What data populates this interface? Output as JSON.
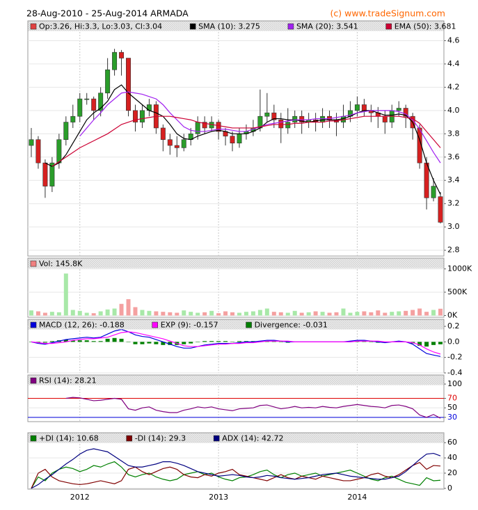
{
  "header": {
    "title": "28-Aug-2010 - 25-Aug-2014 ARMADA",
    "copyright": "(c) www.tradeSignum.com"
  },
  "chart_data": [
    {
      "type": "candlestick",
      "name": "Op:3.26, Hi:3.3, Lo:3.03, Cl:3.04",
      "color": "#e04040",
      "up_color": "#2a9d2a",
      "down_color": "#d62020",
      "categories": [
        null,
        null,
        null,
        null,
        null,
        null,
        null,
        "2012",
        null,
        null,
        null,
        null,
        null,
        null,
        null,
        null,
        null,
        null,
        null,
        null,
        null,
        null,
        null,
        null,
        null,
        null,
        null,
        "2013",
        null,
        null,
        null,
        null,
        null,
        null,
        null,
        null,
        null,
        null,
        null,
        null,
        null,
        null,
        null,
        null,
        null,
        null,
        null,
        "2014",
        null,
        null,
        null,
        null,
        null,
        null,
        null,
        null,
        null,
        null,
        null,
        null
      ],
      "open": [
        3.7,
        3.75,
        3.55,
        3.35,
        3.55,
        3.75,
        3.9,
        3.95,
        4.1,
        4.1,
        4.0,
        4.15,
        4.35,
        4.5,
        4.45,
        4.0,
        3.9,
        4.0,
        4.05,
        3.85,
        3.75,
        3.7,
        3.68,
        3.75,
        3.8,
        3.9,
        3.85,
        3.9,
        3.82,
        3.78,
        3.72,
        3.8,
        3.82,
        3.85,
        3.95,
        3.98,
        3.92,
        3.85,
        3.9,
        3.95,
        3.9,
        3.92,
        3.9,
        3.95,
        3.92,
        3.9,
        3.95,
        4.0,
        4.05,
        4.0,
        3.98,
        3.95,
        3.9,
        4.0,
        4.02,
        3.95,
        3.85,
        3.55,
        3.25,
        3.26
      ],
      "high": [
        3.85,
        3.78,
        3.58,
        3.6,
        3.8,
        3.95,
        4.05,
        4.15,
        4.15,
        4.12,
        4.2,
        4.45,
        4.53,
        4.52,
        4.45,
        4.05,
        4.05,
        4.1,
        4.08,
        3.88,
        3.8,
        3.78,
        3.8,
        3.85,
        3.95,
        3.95,
        3.95,
        3.92,
        3.85,
        3.82,
        3.85,
        3.88,
        3.92,
        4.18,
        4.15,
        4.05,
        3.98,
        4.02,
        4.0,
        4.0,
        3.98,
        3.98,
        4.02,
        4.0,
        3.98,
        4.05,
        4.08,
        4.12,
        4.1,
        4.05,
        4.03,
        4.0,
        4.05,
        4.08,
        4.05,
        3.98,
        3.88,
        3.6,
        3.42,
        3.3
      ],
      "low": [
        3.6,
        3.5,
        3.25,
        3.3,
        3.5,
        3.7,
        3.85,
        3.9,
        4.05,
        3.92,
        3.95,
        4.1,
        4.3,
        4.3,
        3.95,
        3.82,
        3.85,
        3.95,
        3.8,
        3.65,
        3.62,
        3.6,
        3.65,
        3.7,
        3.75,
        3.8,
        3.82,
        3.75,
        3.7,
        3.65,
        3.68,
        3.75,
        3.78,
        3.82,
        3.9,
        3.85,
        3.72,
        3.8,
        3.85,
        3.8,
        3.85,
        3.82,
        3.85,
        3.85,
        3.78,
        3.85,
        3.9,
        3.95,
        3.95,
        3.9,
        3.85,
        3.8,
        3.85,
        3.95,
        3.85,
        3.75,
        3.5,
        3.15,
        3.22,
        3.03
      ],
      "close": [
        3.75,
        3.55,
        3.35,
        3.55,
        3.75,
        3.9,
        3.95,
        4.1,
        4.1,
        4.0,
        4.15,
        4.35,
        4.5,
        4.45,
        4.0,
        3.9,
        4.0,
        4.05,
        3.85,
        3.75,
        3.7,
        3.68,
        3.75,
        3.8,
        3.9,
        3.85,
        3.9,
        3.82,
        3.78,
        3.72,
        3.8,
        3.82,
        3.85,
        3.95,
        3.98,
        3.92,
        3.85,
        3.9,
        3.95,
        3.9,
        3.92,
        3.9,
        3.95,
        3.92,
        3.9,
        3.95,
        4.0,
        4.05,
        4.0,
        3.98,
        3.95,
        3.9,
        4.0,
        4.02,
        3.95,
        3.85,
        3.55,
        3.25,
        3.35,
        3.04
      ],
      "series": [
        {
          "name": "SMA (10): 3.275",
          "color": "#000000",
          "values": [
            null,
            null,
            3.55,
            3.52,
            3.55,
            3.62,
            3.72,
            3.82,
            3.92,
            3.98,
            4.02,
            4.08,
            4.18,
            4.22,
            4.15,
            4.1,
            4.05,
            4.0,
            3.98,
            3.95,
            3.88,
            3.8,
            3.76,
            3.75,
            3.78,
            3.8,
            3.82,
            3.83,
            3.82,
            3.8,
            3.8,
            3.8,
            3.82,
            3.85,
            3.9,
            3.93,
            3.93,
            3.92,
            3.92,
            3.91,
            3.9,
            3.91,
            3.92,
            3.92,
            3.92,
            3.93,
            3.95,
            3.98,
            4.0,
            4.0,
            3.98,
            3.96,
            3.96,
            3.97,
            3.96,
            3.9,
            3.75,
            3.55,
            3.4,
            3.28
          ]
        },
        {
          "name": "SMA (20): 3.541",
          "color": "#a020f0",
          "values": [
            null,
            null,
            null,
            null,
            null,
            null,
            null,
            3.78,
            3.85,
            3.92,
            3.98,
            4.05,
            4.1,
            4.15,
            4.16,
            4.15,
            4.14,
            4.12,
            4.1,
            4.05,
            3.98,
            3.92,
            3.86,
            3.83,
            3.82,
            3.82,
            3.83,
            3.84,
            3.84,
            3.83,
            3.82,
            3.82,
            3.84,
            3.86,
            3.88,
            3.89,
            3.9,
            3.91,
            3.92,
            3.92,
            3.92,
            3.93,
            3.93,
            3.93,
            3.94,
            3.95,
            3.96,
            3.98,
            3.99,
            4.0,
            4.0,
            4.0,
            4.0,
            3.99,
            3.97,
            3.92,
            3.84,
            3.74,
            3.64,
            3.55
          ]
        },
        {
          "name": "EMA (50): 3.681",
          "color": "#cc0033",
          "values": [
            null,
            null,
            null,
            3.52,
            3.56,
            3.6,
            3.64,
            3.68,
            3.71,
            3.74,
            3.77,
            3.8,
            3.84,
            3.88,
            3.9,
            3.92,
            3.93,
            3.94,
            3.95,
            3.95,
            3.95,
            3.94,
            3.93,
            3.92,
            3.9,
            3.89,
            3.88,
            3.87,
            3.86,
            3.85,
            3.85,
            3.85,
            3.85,
            3.86,
            3.87,
            3.88,
            3.88,
            3.88,
            3.89,
            3.89,
            3.9,
            3.9,
            3.9,
            3.91,
            3.91,
            3.92,
            3.93,
            3.94,
            3.95,
            3.95,
            3.95,
            3.95,
            3.95,
            3.95,
            3.94,
            3.93,
            3.89,
            3.82,
            3.75,
            3.68
          ]
        }
      ],
      "ylim": [
        2.75,
        4.77
      ],
      "yticks": [
        2.8,
        {
          "value": 3,
          "label": "3.0"
        },
        3.2,
        3.4,
        3.6,
        3.8,
        {
          "value": 4,
          "label": "4.0"
        },
        4.2,
        4.4,
        4.6
      ],
      "grid": true
    },
    {
      "type": "bar",
      "name": "Vol: 145.8K",
      "color": "#f08080",
      "up_color": "#a8e8a8",
      "down_color": "#f4a0a0",
      "values": [
        110000,
        90000,
        60000,
        80000,
        70000,
        900000,
        120000,
        100000,
        60000,
        50000,
        90000,
        130000,
        150000,
        250000,
        350000,
        180000,
        120000,
        100000,
        90000,
        80000,
        70000,
        60000,
        110000,
        80000,
        60000,
        70000,
        100000,
        50000,
        90000,
        70000,
        60000,
        80000,
        90000,
        120000,
        150000,
        80000,
        70000,
        60000,
        100000,
        60000,
        70000,
        90000,
        80000,
        60000,
        70000,
        150000,
        60000,
        80000,
        90000,
        70000,
        110000,
        60000,
        80000,
        90000,
        100000,
        120000,
        150000,
        80000,
        120000,
        145800
      ],
      "ylim": [
        -37000,
        1230000
      ],
      "yticks": [
        {
          "value": 0,
          "label": "0K"
        },
        {
          "value": 500000,
          "label": "500K"
        },
        {
          "value": 1000000,
          "label": "1000K"
        }
      ],
      "grid": true
    },
    {
      "type": "line",
      "series": [
        {
          "name": "MACD (12, 26): -0.188",
          "color": "#0000dd",
          "values": [
            0.0,
            -0.02,
            -0.03,
            -0.01,
            0.01,
            0.03,
            0.04,
            0.05,
            0.06,
            0.05,
            0.06,
            0.1,
            0.14,
            0.16,
            0.13,
            0.09,
            0.07,
            0.06,
            0.03,
            0.0,
            -0.03,
            -0.06,
            -0.08,
            -0.08,
            -0.06,
            -0.04,
            -0.03,
            -0.02,
            -0.02,
            -0.02,
            -0.01,
            0.0,
            0.0,
            0.01,
            0.02,
            0.02,
            0.01,
            0.0,
            0.0,
            0.0,
            0.0,
            0.0,
            0.0,
            0.0,
            0.0,
            0.0,
            0.01,
            0.02,
            0.02,
            0.01,
            0.0,
            -0.01,
            0.0,
            0.01,
            0.0,
            -0.03,
            -0.09,
            -0.15,
            -0.17,
            -0.188
          ]
        },
        {
          "name": "EXP (9): -0.157",
          "color": "#ff00ff",
          "values": [
            0.0,
            -0.01,
            -0.02,
            -0.02,
            -0.01,
            0.0,
            0.02,
            0.03,
            0.04,
            0.04,
            0.05,
            0.06,
            0.09,
            0.12,
            0.13,
            0.12,
            0.1,
            0.08,
            0.06,
            0.04,
            0.01,
            -0.02,
            -0.05,
            -0.06,
            -0.06,
            -0.05,
            -0.04,
            -0.03,
            -0.03,
            -0.02,
            -0.02,
            -0.01,
            -0.01,
            0.0,
            0.01,
            0.01,
            0.01,
            0.01,
            0.0,
            0.0,
            0.0,
            0.0,
            0.0,
            0.0,
            0.0,
            0.0,
            0.0,
            0.01,
            0.01,
            0.01,
            0.01,
            0.0,
            0.0,
            0.0,
            0.0,
            -0.01,
            -0.04,
            -0.09,
            -0.13,
            -0.157
          ]
        },
        {
          "name": "Divergence: -0.031",
          "color": "#008000",
          "type": "bar",
          "values": [
            0.0,
            -0.01,
            -0.01,
            0.01,
            0.02,
            0.03,
            0.02,
            0.02,
            0.02,
            0.01,
            0.01,
            0.04,
            0.05,
            0.04,
            0.0,
            -0.03,
            -0.03,
            -0.02,
            -0.03,
            -0.04,
            -0.04,
            -0.04,
            -0.03,
            -0.02,
            0.0,
            0.01,
            0.01,
            0.01,
            0.01,
            0.0,
            0.01,
            0.01,
            0.01,
            0.01,
            0.01,
            0.01,
            0.0,
            -0.01,
            0.0,
            0.0,
            0.0,
            0.0,
            0.0,
            0.0,
            0.0,
            0.0,
            0.01,
            0.01,
            0.01,
            0.0,
            -0.01,
            -0.01,
            0.0,
            0.01,
            0.0,
            -0.02,
            -0.05,
            -0.06,
            -0.04,
            -0.031
          ]
        }
      ],
      "ylim": [
        -0.4,
        0.29
      ],
      "yticks": [
        -0.4,
        -0.2,
        {
          "value": 0,
          "label": "0.0"
        },
        0.2
      ],
      "grid": true
    },
    {
      "type": "line",
      "series": [
        {
          "name": "RSI (14): 28.21",
          "color": "#800080",
          "values": [
            null,
            null,
            null,
            null,
            null,
            70,
            72,
            71,
            68,
            65,
            66,
            68,
            70,
            68,
            48,
            45,
            50,
            52,
            45,
            42,
            40,
            40,
            45,
            48,
            52,
            50,
            52,
            48,
            46,
            44,
            48,
            49,
            50,
            55,
            56,
            52,
            48,
            50,
            53,
            50,
            51,
            50,
            53,
            51,
            50,
            53,
            55,
            57,
            55,
            53,
            52,
            50,
            55,
            56,
            53,
            48,
            35,
            30,
            36,
            28.21
          ]
        }
      ],
      "ylim": [
        21,
        119
      ],
      "yticks": [
        30,
        50,
        70,
        100
      ],
      "hlines": [
        {
          "value": 70,
          "color": "#dd0000"
        },
        {
          "value": 30,
          "color": "#0000dd"
        }
      ],
      "grid": true
    },
    {
      "type": "line",
      "series": [
        {
          "name": "+DI (14): 10.68",
          "color": "#008000",
          "values": [
            0,
            15,
            10,
            20,
            25,
            28,
            26,
            22,
            25,
            30,
            28,
            32,
            35,
            28,
            18,
            15,
            18,
            20,
            15,
            12,
            10,
            12,
            18,
            20,
            22,
            18,
            20,
            15,
            12,
            10,
            14,
            15,
            18,
            22,
            24,
            18,
            14,
            18,
            20,
            16,
            18,
            20,
            16,
            18,
            20,
            22,
            24,
            20,
            16,
            12,
            10,
            14,
            16,
            12,
            8,
            6,
            4,
            14,
            10,
            10.68
          ]
        },
        {
          "name": "-DI (14): 29.3",
          "color": "#800000",
          "values": [
            0,
            20,
            25,
            15,
            10,
            8,
            6,
            5,
            6,
            8,
            10,
            8,
            6,
            10,
            25,
            28,
            22,
            18,
            22,
            26,
            28,
            25,
            18,
            15,
            14,
            18,
            16,
            20,
            22,
            25,
            18,
            16,
            14,
            12,
            10,
            14,
            18,
            14,
            12,
            16,
            14,
            12,
            16,
            14,
            12,
            10,
            10,
            12,
            14,
            18,
            20,
            16,
            14,
            18,
            24,
            30,
            34,
            25,
            30,
            29.3
          ]
        },
        {
          "name": "ADX (14): 42.72",
          "color": "#000080",
          "values": [
            0,
            5,
            12,
            18,
            25,
            32,
            38,
            45,
            50,
            52,
            50,
            48,
            42,
            36,
            30,
            28,
            28,
            30,
            32,
            35,
            35,
            33,
            30,
            26,
            22,
            20,
            18,
            16,
            17,
            18,
            17,
            15,
            14,
            15,
            17,
            16,
            14,
            13,
            12,
            13,
            14,
            16,
            18,
            19,
            20,
            18,
            16,
            15,
            14,
            13,
            12,
            12,
            14,
            16,
            22,
            30,
            38,
            45,
            46,
            42.72
          ]
        }
      ],
      "ylim": [
        -1,
        73
      ],
      "yticks": [
        0,
        20,
        40,
        60
      ],
      "grid": true
    }
  ]
}
